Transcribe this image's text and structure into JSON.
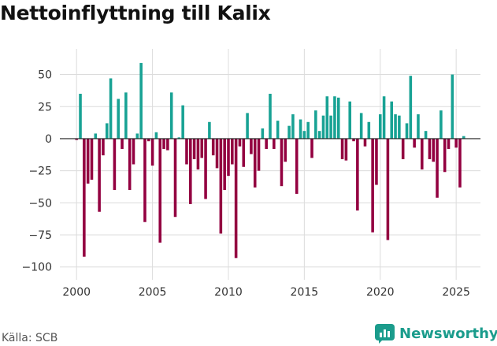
{
  "chart_data": {
    "type": "bar",
    "title": "Nettoinflyttning till Kalix",
    "xlabel": "",
    "ylabel": "",
    "xlim": [
      1998.9,
      2026.6
    ],
    "ylim": [
      -110,
      70
    ],
    "x_ticks": [
      2000,
      2005,
      2010,
      2015,
      2020,
      2025
    ],
    "x_tick_labels": [
      "2000",
      "2005",
      "2010",
      "2015",
      "2020",
      "2025"
    ],
    "y_ticks": [
      50,
      25,
      0,
      -25,
      -50,
      -75,
      -100
    ],
    "y_tick_labels": [
      "50",
      "25",
      "0",
      "−25",
      "−50",
      "−75",
      "−100"
    ],
    "colors": {
      "positive": "#18a294",
      "negative": "#930040",
      "grid": "#dcdcdc",
      "zero_line": "#222222"
    },
    "series": [
      {
        "name": "Nettoinflyttning",
        "x_start": 2000.0,
        "x_step": 0.25,
        "values": [
          -1,
          35,
          -92,
          -35,
          -32,
          4,
          -57,
          -13,
          12,
          47,
          -40,
          31,
          -8,
          36,
          -40,
          -20,
          4,
          59,
          -65,
          -2,
          -21,
          5,
          -81,
          -8,
          -9,
          36,
          -61,
          1,
          26,
          -20,
          -51,
          -16,
          -24,
          -15,
          -47,
          13,
          -13,
          -23,
          -74,
          -40,
          -29,
          -20,
          -93,
          -6,
          -22,
          20,
          -12,
          -38,
          -25,
          8,
          -8,
          35,
          -8,
          14,
          -37,
          -18,
          10,
          19,
          -43,
          15,
          6,
          13,
          -15,
          22,
          6,
          18,
          33,
          18,
          33,
          32,
          -16,
          -17,
          29,
          -2,
          -56,
          20,
          -6,
          13,
          -73,
          -36,
          19,
          33,
          -79,
          29,
          19,
          18,
          -16,
          12,
          49,
          -7,
          19,
          -24,
          6,
          -16,
          -18,
          -46,
          22,
          -26,
          -8,
          50,
          -7,
          -38,
          2
        ]
      }
    ]
  },
  "footer": {
    "source": "Källa: SCB",
    "brand": "Newsworthy"
  }
}
